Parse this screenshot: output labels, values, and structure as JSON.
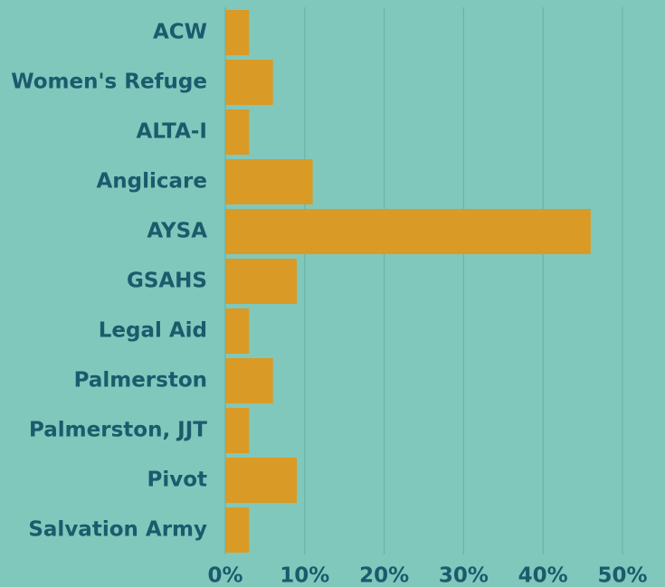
{
  "chart_data": {
    "type": "bar",
    "orientation": "horizontal",
    "categories": [
      "ACW",
      "Women's Refuge",
      "ALTA-I",
      "Anglicare",
      "AYSA",
      "GSAHS",
      "Legal Aid",
      "Palmerston",
      "Palmerston, JJT",
      "Pivot",
      "Salvation Army"
    ],
    "values": [
      3,
      6,
      3,
      11,
      46,
      9,
      3,
      6,
      3,
      9,
      3
    ],
    "color": "#d99a26",
    "xlim": [
      0,
      50
    ],
    "xticks": [
      {
        "value": 0,
        "label": "0%"
      },
      {
        "value": 10,
        "label": "10%"
      },
      {
        "value": 20,
        "label": "20%"
      },
      {
        "value": 30,
        "label": "30%"
      },
      {
        "value": 40,
        "label": "40%"
      },
      {
        "value": 50,
        "label": "50%"
      }
    ],
    "grid": true
  }
}
